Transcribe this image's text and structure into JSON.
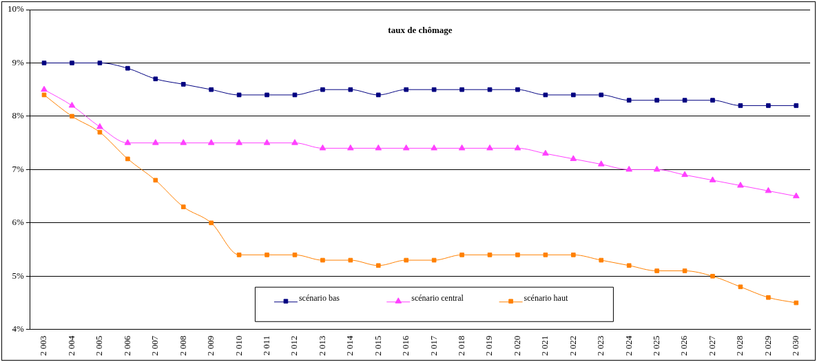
{
  "chart_data": {
    "type": "line",
    "title": "taux de chômage",
    "categories": [
      "2 003",
      "2 004",
      "2 005",
      "2 006",
      "2 007",
      "2 008",
      "2 009",
      "2 010",
      "2 011",
      "2 012",
      "2 013",
      "2 014",
      "2 015",
      "2 016",
      "2 017",
      "2 018",
      "2 019",
      "2 020",
      "2 021",
      "2 022",
      "2 023",
      "2 024",
      "2 025",
      "2 026",
      "2 027",
      "2 028",
      "2 029",
      "2 030"
    ],
    "series": [
      {
        "name": "scénario bas",
        "color": "#000080",
        "marker": "square",
        "values": [
          9.0,
          9.0,
          9.0,
          8.9,
          8.7,
          8.6,
          8.5,
          8.4,
          8.4,
          8.4,
          8.5,
          8.5,
          8.4,
          8.5,
          8.5,
          8.5,
          8.5,
          8.5,
          8.4,
          8.4,
          8.4,
          8.3,
          8.3,
          8.3,
          8.3,
          8.2,
          8.2,
          8.2
        ]
      },
      {
        "name": "scénario central",
        "color": "#ff40ff",
        "marker": "triangle",
        "values": [
          8.5,
          8.2,
          7.8,
          7.5,
          7.5,
          7.5,
          7.5,
          7.5,
          7.5,
          7.5,
          7.4,
          7.4,
          7.4,
          7.4,
          7.4,
          7.4,
          7.4,
          7.4,
          7.3,
          7.2,
          7.1,
          7.0,
          7.0,
          6.9,
          6.8,
          6.7,
          6.6,
          6.5
        ]
      },
      {
        "name": "scénario haut",
        "color": "#ff8000",
        "marker": "square",
        "values": [
          8.4,
          8.0,
          7.7,
          7.2,
          6.8,
          6.3,
          6.0,
          5.4,
          5.4,
          5.4,
          5.3,
          5.3,
          5.2,
          5.3,
          5.3,
          5.4,
          5.4,
          5.4,
          5.4,
          5.4,
          5.3,
          5.2,
          5.1,
          5.1,
          5.0,
          4.8,
          4.6,
          4.5
        ]
      }
    ],
    "ylim": [
      4,
      10
    ],
    "yticks": [
      {
        "value": 4,
        "label": "4%"
      },
      {
        "value": 5,
        "label": "5%"
      },
      {
        "value": 6,
        "label": "6%"
      },
      {
        "value": 7,
        "label": "7%"
      },
      {
        "value": 8,
        "label": "8%"
      },
      {
        "value": 9,
        "label": "9%"
      },
      {
        "value": 10,
        "label": "10%"
      }
    ],
    "grid": "y",
    "legend": "bottom",
    "line_style": "solid"
  }
}
